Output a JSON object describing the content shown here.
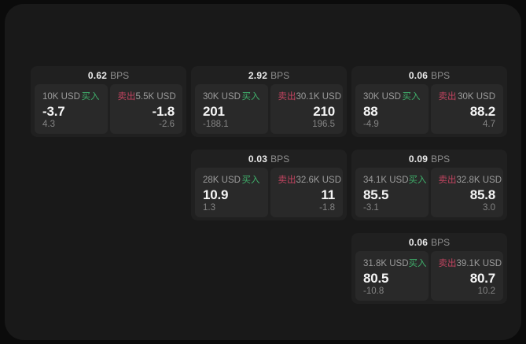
{
  "labels": {
    "bps_unit": "BPS",
    "buy": "买入",
    "sell": "卖出"
  },
  "colors": {
    "window_bg": "#191919",
    "card_bg": "#202020",
    "panel_bg": "#292929",
    "buy_green": "#3fae6a",
    "sell_red": "#c24460"
  },
  "cards": [
    {
      "bps": "0.62",
      "buy": {
        "size": "10K USD",
        "price": "-3.7",
        "delta": "4.3"
      },
      "sell": {
        "size": "5.5K USD",
        "price": "-1.8",
        "delta": "-2.6"
      }
    },
    {
      "bps": "2.92",
      "buy": {
        "size": "30K USD",
        "price": "201",
        "delta": "-188.1"
      },
      "sell": {
        "size": "30.1K USD",
        "price": "210",
        "delta": "196.5"
      }
    },
    {
      "bps": "0.06",
      "buy": {
        "size": "30K USD",
        "price": "88",
        "delta": "-4.9"
      },
      "sell": {
        "size": "30K USD",
        "price": "88.2",
        "delta": "4.7"
      }
    },
    {
      "bps": "0.03",
      "buy": {
        "size": "28K USD",
        "price": "10.9",
        "delta": "1.3"
      },
      "sell": {
        "size": "32.6K USD",
        "price": "11",
        "delta": "-1.8"
      }
    },
    {
      "bps": "0.09",
      "buy": {
        "size": "34.1K USD",
        "price": "85.5",
        "delta": "-3.1"
      },
      "sell": {
        "size": "32.8K USD",
        "price": "85.8",
        "delta": "3.0"
      }
    },
    {
      "bps": "0.06",
      "buy": {
        "size": "31.8K USD",
        "price": "80.5",
        "delta": "-10.8"
      },
      "sell": {
        "size": "39.1K USD",
        "price": "80.7",
        "delta": "10.2"
      }
    }
  ]
}
